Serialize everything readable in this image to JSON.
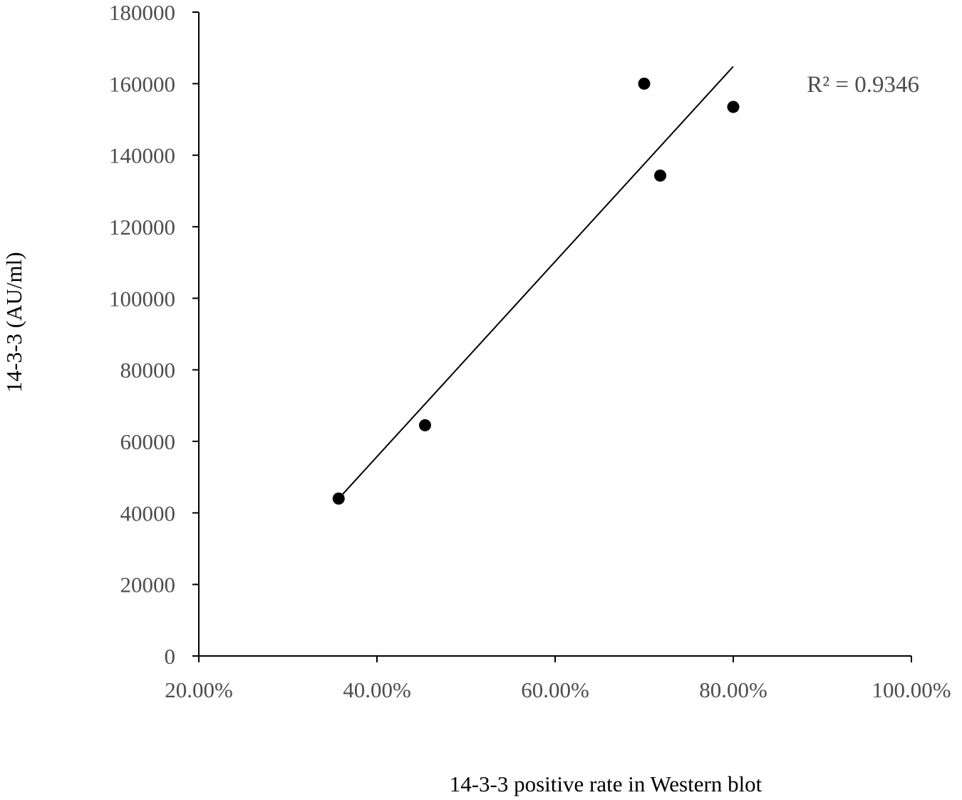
{
  "chart_data": {
    "type": "scatter",
    "xlabel": "14-3-3 positive rate in Western blot",
    "ylabel": "14-3-3 (AU/ml)",
    "xlim": [
      0.2,
      1.0
    ],
    "ylim": [
      0,
      180000
    ],
    "x_ticks": [
      {
        "value": 0.2,
        "label": "20.00%"
      },
      {
        "value": 0.4,
        "label": "40.00%"
      },
      {
        "value": 0.6,
        "label": "60.00%"
      },
      {
        "value": 0.8,
        "label": "80.00%"
      },
      {
        "value": 1.0,
        "label": "100.00%"
      }
    ],
    "y_ticks": [
      {
        "value": 0,
        "label": "0"
      },
      {
        "value": 20000,
        "label": "20000"
      },
      {
        "value": 40000,
        "label": "40000"
      },
      {
        "value": 60000,
        "label": "60000"
      },
      {
        "value": 80000,
        "label": "80000"
      },
      {
        "value": 100000,
        "label": "100000"
      },
      {
        "value": 120000,
        "label": "120000"
      },
      {
        "value": 140000,
        "label": "140000"
      },
      {
        "value": 160000,
        "label": "160000"
      },
      {
        "value": 180000,
        "label": "180000"
      }
    ],
    "points": [
      {
        "x": 0.357,
        "y": 44000
      },
      {
        "x": 0.454,
        "y": 64500
      },
      {
        "x": 0.7,
        "y": 160000
      },
      {
        "x": 0.718,
        "y": 134300
      },
      {
        "x": 0.8,
        "y": 153500
      }
    ],
    "trendline": {
      "type": "linear",
      "x_range": [
        0.357,
        0.8
      ],
      "y_range": [
        44000,
        164800
      ],
      "r_squared_label": "R² = 0.9346"
    },
    "grid": false,
    "legend": "none",
    "colors": {
      "marker": "#000000",
      "axis": "#000000",
      "tick_text": "#4d4d4d"
    }
  }
}
